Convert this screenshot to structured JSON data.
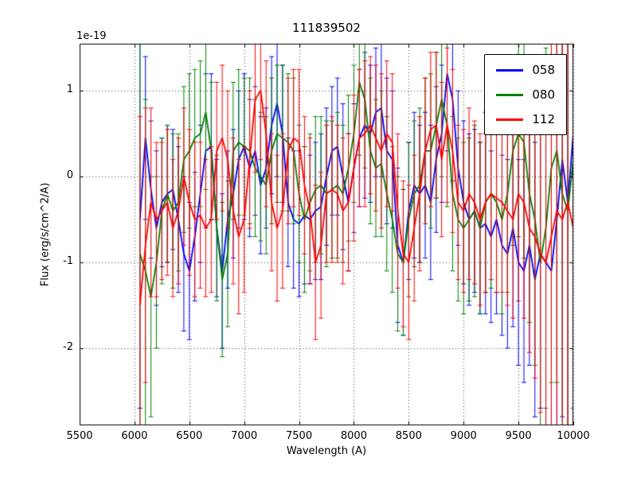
{
  "chart_data": {
    "type": "line",
    "title": "111839502",
    "xlabel": "Wavelength (A)",
    "ylabel": "Flux (erg/s/cm^2/A)",
    "y_offset_text": "1e-19",
    "xlim": [
      5500,
      10000
    ],
    "ylim_in_1e19_units": [
      -2.9,
      1.55
    ],
    "xticks": [
      5500,
      6000,
      6500,
      7000,
      7500,
      8000,
      8500,
      9000,
      9500,
      10000
    ],
    "yticks": [
      -2,
      -1,
      0,
      1
    ],
    "grid": true,
    "grid_style": "dotted",
    "legend_position": "upper right",
    "x": [
      6050,
      6100,
      6150,
      6200,
      6250,
      6300,
      6350,
      6400,
      6450,
      6500,
      6550,
      6600,
      6650,
      6700,
      6750,
      6800,
      6850,
      6900,
      6950,
      7000,
      7050,
      7100,
      7150,
      7200,
      7250,
      7300,
      7350,
      7400,
      7450,
      7500,
      7550,
      7600,
      7650,
      7700,
      7750,
      7800,
      7850,
      7900,
      7950,
      8000,
      8050,
      8100,
      8150,
      8200,
      8250,
      8300,
      8350,
      8400,
      8450,
      8500,
      8550,
      8600,
      8650,
      8700,
      8750,
      8800,
      8850,
      8900,
      8950,
      9000,
      9050,
      9100,
      9150,
      9200,
      9250,
      9300,
      9350,
      9400,
      9450,
      9500,
      9550,
      9600,
      9650,
      9700,
      9750,
      9800,
      9850,
      9900,
      9950,
      10000
    ],
    "series": [
      {
        "name": "058",
        "color": "#0000ff",
        "y": [
          -0.5,
          0.45,
          -0.15,
          -0.6,
          -0.3,
          -0.2,
          -0.15,
          -0.5,
          -0.9,
          -1.1,
          -0.7,
          -0.2,
          0.3,
          0.35,
          -0.6,
          -1.1,
          -0.5,
          -0.2,
          0.2,
          0.35,
          0.1,
          0.3,
          -0.1,
          0.1,
          0.6,
          0.85,
          0.5,
          -0.3,
          -0.5,
          -0.55,
          -0.45,
          -0.5,
          -0.4,
          -0.35,
          0.0,
          0.3,
          0.35,
          0.0,
          -0.3,
          0.1,
          0.45,
          0.6,
          0.5,
          0.75,
          0.8,
          0.3,
          0.2,
          -0.8,
          -1.0,
          -0.4,
          -0.1,
          -0.2,
          -0.1,
          -0.3,
          0.2,
          0.5,
          1.2,
          0.9,
          0.1,
          -0.3,
          -0.5,
          -0.4,
          -0.6,
          -0.55,
          -0.7,
          -0.5,
          -0.8,
          -0.9,
          -0.6,
          -1.0,
          -1.1,
          -0.8,
          -1.2,
          -0.9,
          -1.0,
          -1.1,
          -0.5,
          0.2,
          -0.3,
          0.5
        ],
        "err": [
          2.2,
          0.95,
          0.8,
          0.9,
          0.75,
          0.8,
          0.7,
          0.85,
          0.9,
          0.8,
          0.75,
          0.8,
          0.9,
          0.85,
          0.8,
          0.9,
          0.8,
          0.75,
          0.8,
          0.85,
          0.8,
          0.75,
          0.8,
          0.7,
          0.8,
          0.85,
          0.8,
          0.75,
          0.8,
          0.85,
          0.8,
          0.75,
          0.8,
          0.85,
          0.8,
          0.75,
          0.8,
          0.85,
          0.8,
          0.75,
          0.8,
          0.85,
          0.8,
          0.75,
          0.8,
          0.85,
          0.8,
          0.9,
          0.85,
          0.8,
          0.85,
          0.8,
          0.85,
          0.9,
          0.85,
          0.8,
          0.9,
          0.95,
          0.9,
          0.95,
          1.0,
          0.95,
          1.0,
          1.05,
          1.0,
          1.1,
          1.05,
          1.1,
          1.15,
          1.2,
          1.3,
          1.4,
          1.6,
          1.8,
          2.0,
          2.4,
          2.6,
          3.0,
          2.8,
          3.2
        ]
      },
      {
        "name": "080",
        "color": "#008000",
        "y": [
          -0.9,
          -1.1,
          -1.4,
          -1.0,
          -0.4,
          -0.2,
          -0.4,
          -0.3,
          0.2,
          0.3,
          0.45,
          0.5,
          0.75,
          0.3,
          -0.6,
          -1.2,
          -0.9,
          0.3,
          0.4,
          0.35,
          0.3,
          0.1,
          0.0,
          -0.1,
          0.3,
          0.5,
          0.45,
          0.4,
          0.3,
          -0.2,
          -0.5,
          -0.3,
          -0.15,
          -0.1,
          -0.2,
          -0.15,
          -0.1,
          -0.2,
          0.1,
          0.5,
          1.1,
          0.9,
          0.3,
          0.1,
          0.15,
          -0.2,
          -0.5,
          -0.9,
          -1.0,
          -0.5,
          -0.2,
          -0.1,
          0.3,
          0.3,
          0.6,
          0.9,
          0.6,
          -0.2,
          -0.5,
          -0.6,
          -0.5,
          -0.4,
          -0.6,
          -0.3,
          -0.2,
          -0.3,
          -0.5,
          -0.2,
          0.3,
          0.5,
          0.4,
          -0.2,
          -0.5,
          -1.0,
          -0.6,
          0.1,
          0.3,
          -0.2,
          -0.4,
          0.2
        ],
        "err": [
          2.6,
          2.0,
          1.4,
          1.0,
          0.85,
          0.8,
          0.9,
          0.8,
          0.85,
          0.9,
          0.8,
          0.85,
          0.9,
          0.8,
          0.85,
          0.9,
          0.85,
          0.8,
          0.85,
          0.8,
          0.85,
          0.8,
          0.75,
          0.8,
          0.85,
          0.8,
          0.85,
          0.8,
          0.85,
          0.8,
          0.85,
          0.8,
          0.85,
          0.8,
          0.85,
          0.8,
          0.85,
          0.8,
          0.85,
          0.8,
          0.85,
          0.8,
          0.85,
          0.8,
          0.85,
          0.9,
          0.85,
          0.9,
          0.85,
          0.9,
          0.85,
          0.9,
          0.85,
          0.9,
          0.85,
          0.9,
          0.95,
          0.9,
          0.95,
          1.0,
          0.95,
          1.0,
          1.0,
          1.05,
          1.1,
          1.05,
          1.1,
          1.15,
          1.1,
          1.2,
          1.35,
          1.5,
          1.7,
          1.9,
          2.1,
          2.5,
          2.7,
          3.1,
          2.9,
          3.3
        ]
      },
      {
        "name": "112",
        "color": "#ff0000",
        "y": [
          -1.5,
          -0.8,
          -0.3,
          -0.5,
          -0.4,
          -0.3,
          -0.6,
          -0.4,
          0.0,
          -0.3,
          -0.5,
          -0.45,
          -0.6,
          -0.5,
          0.3,
          0.45,
          0.2,
          -0.4,
          -0.7,
          -0.5,
          0.2,
          0.9,
          1.0,
          0.5,
          -0.3,
          -0.6,
          -0.4,
          0.3,
          0.45,
          0.4,
          -0.1,
          -0.4,
          -1.0,
          -0.8,
          -0.2,
          -0.15,
          -0.2,
          -0.4,
          -0.3,
          0.1,
          0.45,
          0.5,
          0.6,
          0.45,
          0.3,
          0.5,
          0.4,
          -0.4,
          -0.9,
          -1.0,
          -0.6,
          -0.2,
          0.3,
          0.55,
          0.6,
          0.2,
          0.6,
          0.3,
          -0.3,
          -0.4,
          -0.2,
          -0.3,
          -0.5,
          -0.3,
          -0.2,
          -0.25,
          -0.3,
          -0.4,
          -0.5,
          -0.2,
          -0.3,
          -0.6,
          -0.7,
          -0.9,
          -1.0,
          -0.7,
          -0.4,
          -0.5,
          -0.3,
          -0.6
        ],
        "err": [
          2.2,
          1.6,
          1.1,
          0.9,
          0.8,
          0.85,
          0.8,
          0.85,
          0.8,
          0.85,
          0.9,
          0.85,
          0.8,
          0.85,
          0.8,
          0.85,
          0.8,
          0.85,
          0.9,
          0.85,
          0.8,
          0.85,
          0.8,
          0.85,
          0.8,
          0.85,
          0.9,
          0.85,
          0.8,
          0.85,
          0.8,
          0.85,
          0.9,
          0.85,
          0.8,
          0.85,
          0.8,
          0.85,
          0.8,
          0.85,
          0.8,
          0.85,
          0.8,
          0.85,
          0.9,
          0.85,
          0.8,
          0.9,
          0.85,
          0.9,
          0.85,
          0.9,
          0.85,
          0.9,
          0.85,
          0.9,
          0.9,
          0.95,
          0.9,
          0.95,
          1.0,
          0.95,
          1.0,
          1.05,
          1.0,
          1.1,
          1.05,
          1.1,
          1.15,
          1.25,
          1.35,
          1.45,
          1.65,
          1.85,
          2.05,
          2.45,
          2.65,
          3.05,
          2.85,
          3.25
        ]
      }
    ]
  }
}
